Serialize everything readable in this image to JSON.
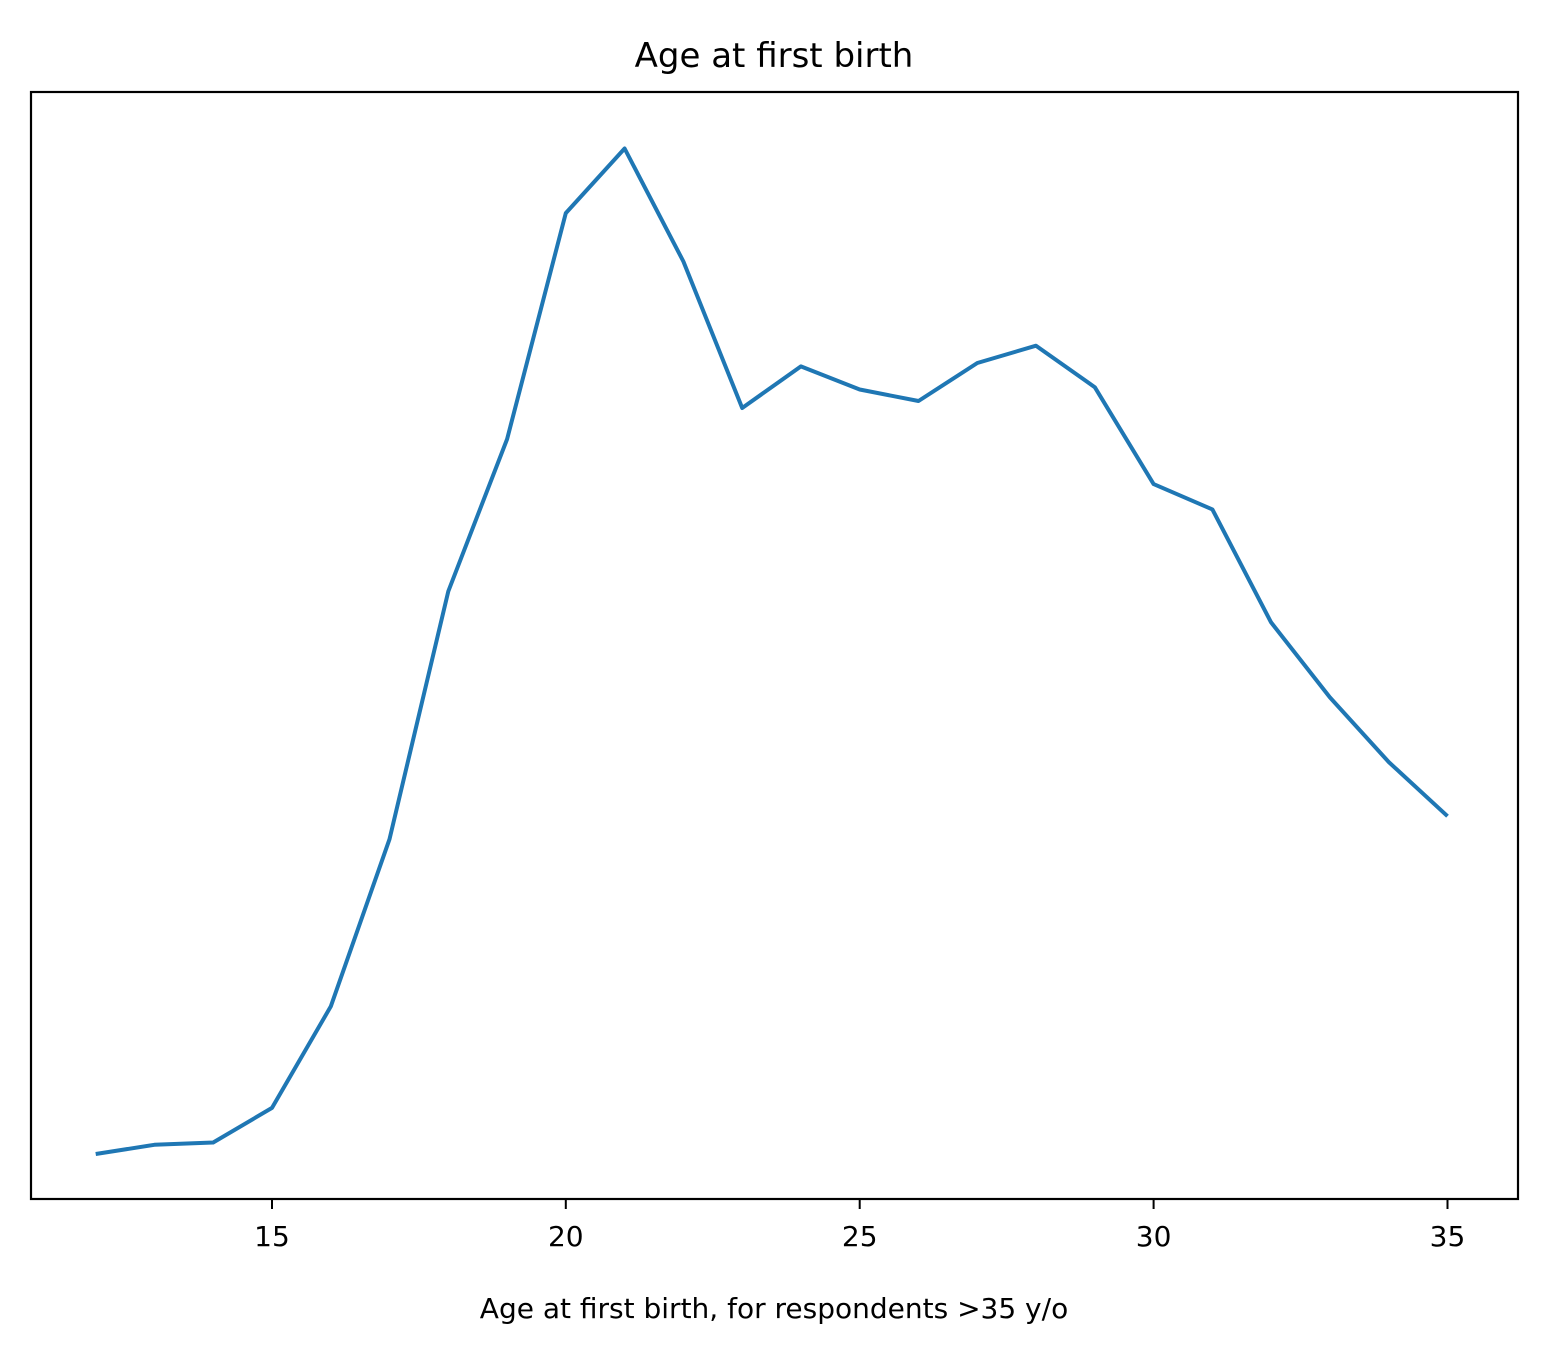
{
  "chart_data": {
    "type": "line",
    "title": "Age at first birth",
    "xlabel": "Age at first birth, for respondents >35 y/o",
    "ylabel": "",
    "xlim": [
      10.9,
      36.2
    ],
    "ylim": [
      -0.0018,
      0.0942
    ],
    "xticks": [
      15,
      20,
      25,
      30,
      35
    ],
    "yticks": [],
    "grid": false,
    "legend": "none",
    "series": [
      {
        "color": "#1f77b4",
        "x": [
          12,
          13,
          14,
          15,
          16,
          17,
          18,
          19,
          20,
          21,
          22,
          23,
          24,
          25,
          26,
          27,
          28,
          29,
          30,
          31,
          32,
          33,
          34,
          35
        ],
        "y": [
          0.0021,
          0.0029,
          0.0031,
          0.0061,
          0.0149,
          0.0294,
          0.0509,
          0.0641,
          0.0837,
          0.0893,
          0.0795,
          0.0668,
          0.0704,
          0.0684,
          0.0674,
          0.0707,
          0.0722,
          0.0686,
          0.0602,
          0.058,
          0.0482,
          0.0417,
          0.0361,
          0.0314
        ]
      }
    ]
  }
}
